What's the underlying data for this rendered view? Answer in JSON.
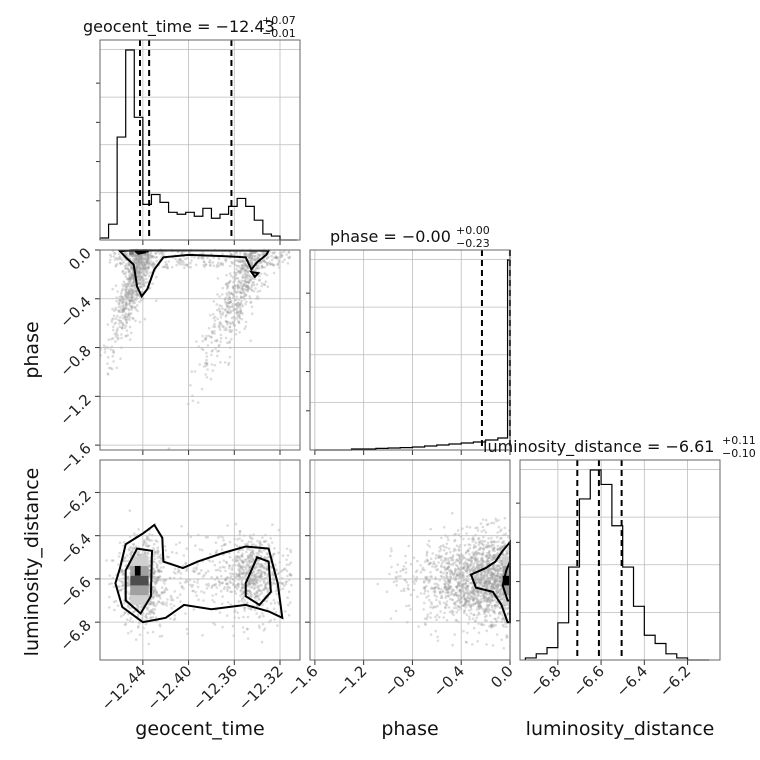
{
  "chart_data": {
    "type": "corner",
    "parameters": [
      "geocent_time",
      "phase",
      "luminosity_distance"
    ],
    "titles": [
      {
        "param": "geocent_time",
        "text": "geocent_time = −12.43",
        "plus": "+0.07",
        "minus": "−0.01"
      },
      {
        "param": "phase",
        "text": "phase = −0.00",
        "plus": "+0.00",
        "minus": "−0.23"
      },
      {
        "param": "luminosity_distance",
        "text": "luminosity_distance = −6.61",
        "plus": "+0.11",
        "minus": "−0.10"
      }
    ],
    "axis_labels": {
      "x": [
        "geocent_time",
        "phase",
        "luminosity_distance"
      ],
      "y": [
        "phase",
        "luminosity_distance"
      ]
    },
    "ranges": {
      "geocent_time": [
        -12.4775,
        -12.3025
      ],
      "phase": [
        -1.64,
        0.0
      ],
      "luminosity_distance": [
        -6.975,
        -6.05
      ]
    },
    "ticks": {
      "geocent_time": {
        "values": [
          -12.44,
          -12.4,
          -12.36,
          -12.32
        ],
        "labels": [
          "−12.44",
          "−12.40",
          "−12.36",
          "−12.32"
        ]
      },
      "phase": {
        "values": [
          -1.6,
          -1.2,
          -0.8,
          -0.4,
          0.0
        ],
        "labels": [
          "−1.6",
          "−1.2",
          "−0.8",
          "−0.4",
          "0.0"
        ]
      },
      "luminosity_distance": {
        "values": [
          -6.8,
          -6.6,
          -6.4,
          -6.2
        ],
        "labels": [
          "−6.8",
          "−6.6",
          "−6.4",
          "−6.2"
        ]
      }
    },
    "quantiles": {
      "geocent_time": [
        -12.4425,
        -12.4345,
        -12.3625
      ],
      "phase": [
        -0.23,
        -0.0005
      ],
      "luminosity_distance": [
        -6.71,
        -6.61,
        -6.505
      ]
    },
    "histograms": {
      "geocent_time": {
        "edges": [
          -12.4775,
          -12.47,
          -12.4625,
          -12.455,
          -12.4475,
          -12.44,
          -12.4325,
          -12.425,
          -12.4175,
          -12.41,
          -12.4025,
          -12.395,
          -12.3875,
          -12.38,
          -12.3725,
          -12.365,
          -12.3575,
          -12.35,
          -12.3425,
          -12.335,
          -12.3275,
          -12.32,
          -12.3125,
          -12.305
        ],
        "counts": [
          0.01,
          0.08,
          0.52,
          0.96,
          0.62,
          0.18,
          0.23,
          0.19,
          0.14,
          0.13,
          0.14,
          0.12,
          0.16,
          0.11,
          0.13,
          0.17,
          0.21,
          0.17,
          0.1,
          0.03,
          0.02,
          0.0,
          0.0
        ]
      },
      "phase": {
        "edges": [
          -1.6,
          -1.5,
          -1.4,
          -1.3,
          -1.2,
          -1.1,
          -1.0,
          -0.9,
          -0.8,
          -0.7,
          -0.6,
          -0.5,
          -0.4,
          -0.3,
          -0.2,
          -0.1,
          -0.02,
          0.0
        ],
        "counts": [
          0.0,
          0.0,
          0.0,
          0.005,
          0.005,
          0.008,
          0.01,
          0.012,
          0.015,
          0.02,
          0.025,
          0.03,
          0.035,
          0.04,
          0.05,
          0.06,
          0.95
        ]
      },
      "luminosity_distance": {
        "edges": [
          -6.95,
          -6.9,
          -6.85,
          -6.8,
          -6.75,
          -6.7,
          -6.65,
          -6.6,
          -6.55,
          -6.5,
          -6.45,
          -6.4,
          -6.35,
          -6.3,
          -6.25,
          -6.2,
          -6.15,
          -6.1
        ],
        "counts": [
          0.01,
          0.03,
          0.06,
          0.18,
          0.45,
          0.78,
          0.92,
          0.85,
          0.65,
          0.45,
          0.26,
          0.12,
          0.08,
          0.03,
          0.01,
          0.0,
          0.0
        ]
      }
    }
  }
}
